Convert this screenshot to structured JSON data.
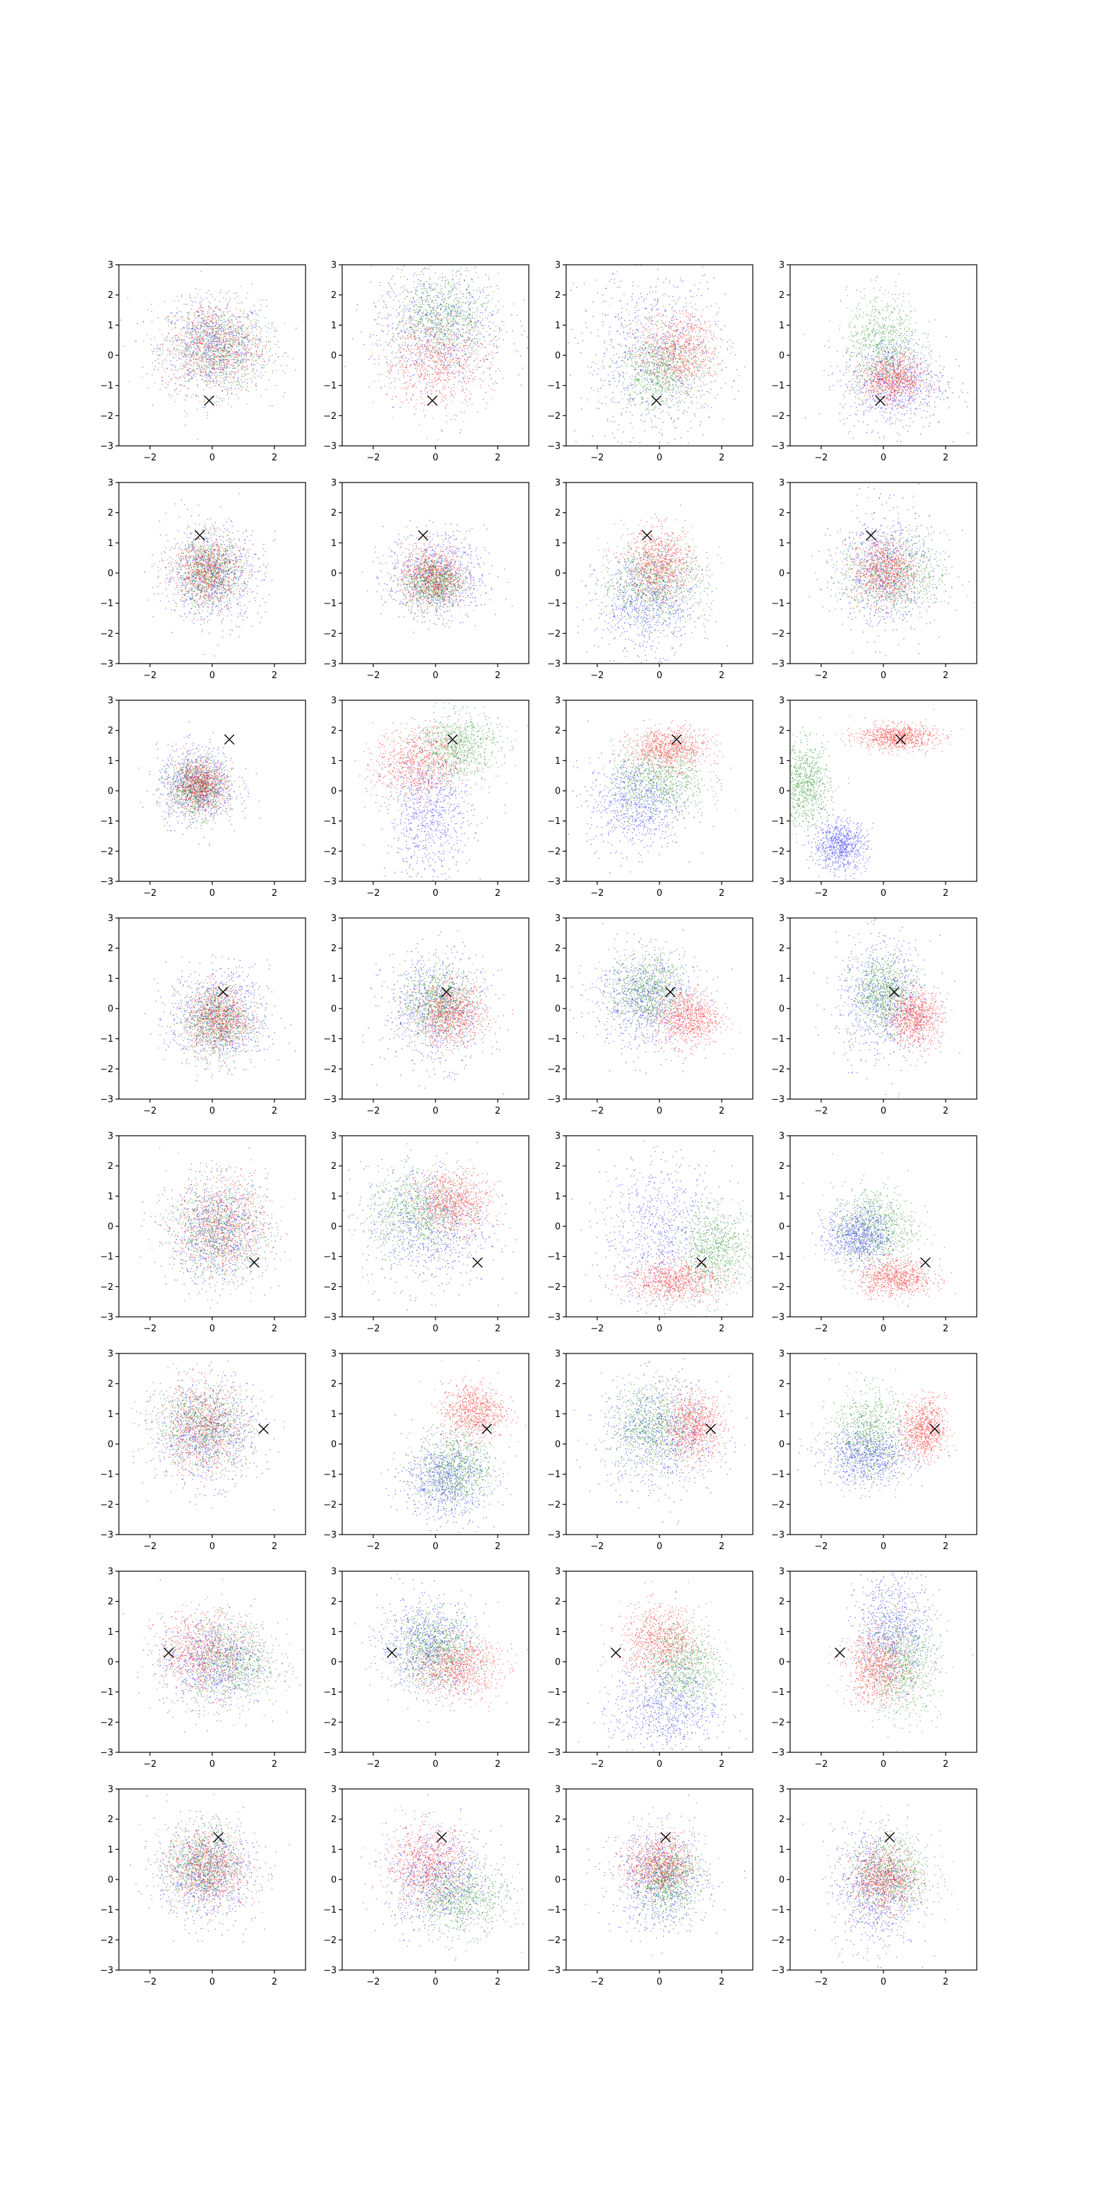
{
  "chart_data": {
    "type": "scatter",
    "layout": {
      "rows": 8,
      "cols": 4
    },
    "xlim": [
      -3,
      3
    ],
    "ylim": [
      -3,
      3
    ],
    "xticks": [
      -2,
      0,
      2
    ],
    "yticks": [
      -3,
      -2,
      -1,
      0,
      1,
      2,
      3
    ],
    "xtick_labels": [
      "−2",
      "0",
      "2"
    ],
    "ytick_labels": [
      "−3",
      "−2",
      "−1",
      "0",
      "1",
      "2",
      "3"
    ],
    "grid": false,
    "legend": "none",
    "series_colors": {
      "blue": "#0000ff",
      "green": "#008000",
      "red": "#ff0000"
    },
    "marker": {
      "symbol": "x",
      "color": "#000000"
    },
    "markers_per_row": [
      {
        "x": -0.1,
        "y": -1.5
      },
      {
        "x": -0.4,
        "y": 1.25
      },
      {
        "x": 0.55,
        "y": 1.7
      },
      {
        "x": 0.35,
        "y": 0.55
      },
      {
        "x": 1.35,
        "y": -1.2
      },
      {
        "x": 1.65,
        "y": 0.5
      },
      {
        "x": -1.4,
        "y": 0.3
      },
      {
        "x": 0.2,
        "y": 1.4
      }
    ],
    "panels": [
      [
        {
          "blue": {
            "cx": 0,
            "cy": 0.3,
            "sx": 1.0,
            "sy": 0.9
          },
          "green": {
            "cx": 0.2,
            "cy": 0.2,
            "sx": 0.95,
            "sy": 0.85
          },
          "red": {
            "cx": 0,
            "cy": 0.3,
            "sx": 0.95,
            "sy": 0.9
          }
        },
        {
          "blue": {
            "cx": 0.1,
            "cy": 0.9,
            "sx": 1.3,
            "sy": 1.3
          },
          "green": {
            "cx": 0.2,
            "cy": 1.3,
            "sx": 0.9,
            "sy": 0.8
          },
          "red": {
            "cx": 0,
            "cy": -0.2,
            "sx": 1.0,
            "sy": 0.9
          }
        },
        {
          "blue": {
            "cx": -0.2,
            "cy": 0,
            "sx": 1.4,
            "sy": 1.7
          },
          "green": {
            "cx": 0,
            "cy": -0.5,
            "sx": 0.8,
            "sy": 0.8
          },
          "red": {
            "cx": 0.6,
            "cy": 0.2,
            "sx": 0.75,
            "sy": 0.75
          }
        },
        {
          "blue": {
            "cx": 0.3,
            "cy": -0.9,
            "sx": 1.0,
            "sy": 0.9
          },
          "green": {
            "cx": 0,
            "cy": 0.4,
            "sx": 0.7,
            "sy": 1.0
          },
          "red": {
            "cx": 0.3,
            "cy": -0.8,
            "sx": 0.6,
            "sy": 0.45
          }
        }
      ],
      [
        {
          "blue": {
            "cx": 0,
            "cy": 0,
            "sx": 0.95,
            "sy": 0.95
          },
          "green": {
            "cx": -0.1,
            "cy": 0,
            "sx": 0.6,
            "sy": 0.65
          },
          "red": {
            "cx": -0.2,
            "cy": 0.1,
            "sx": 0.65,
            "sy": 0.7
          }
        },
        {
          "blue": {
            "cx": 0,
            "cy": -0.1,
            "sx": 0.95,
            "sy": 0.85
          },
          "green": {
            "cx": -0.1,
            "cy": -0.3,
            "sx": 0.55,
            "sy": 0.5
          },
          "red": {
            "cx": -0.1,
            "cy": -0.1,
            "sx": 0.6,
            "sy": 0.6
          }
        },
        {
          "blue": {
            "cx": -0.4,
            "cy": -1.0,
            "sx": 0.95,
            "sy": 0.95
          },
          "green": {
            "cx": -0.2,
            "cy": -0.3,
            "sx": 1.0,
            "sy": 0.8
          },
          "red": {
            "cx": 0,
            "cy": 0.3,
            "sx": 0.65,
            "sy": 0.7
          }
        },
        {
          "blue": {
            "cx": 0,
            "cy": 0.2,
            "sx": 0.9,
            "sy": 1.2
          },
          "green": {
            "cx": 0.3,
            "cy": -0.1,
            "sx": 1.0,
            "sy": 0.75
          },
          "red": {
            "cx": 0,
            "cy": 0.1,
            "sx": 0.6,
            "sy": 0.65
          }
        }
      ],
      [
        {
          "blue": {
            "cx": -0.5,
            "cy": 0.2,
            "sx": 0.75,
            "sy": 0.75
          },
          "green": {
            "cx": -0.5,
            "cy": 0.1,
            "sx": 0.55,
            "sy": 0.55
          },
          "red": {
            "cx": -0.4,
            "cy": 0.2,
            "sx": 0.5,
            "sy": 0.5
          }
        },
        {
          "blue": {
            "cx": -0.2,
            "cy": -0.8,
            "sx": 0.8,
            "sy": 1.2
          },
          "green": {
            "cx": 0.7,
            "cy": 1.5,
            "sx": 0.8,
            "sy": 0.65
          },
          "red": {
            "cx": -0.6,
            "cy": 0.9,
            "sx": 0.8,
            "sy": 0.7
          }
        },
        {
          "blue": {
            "cx": -0.8,
            "cy": -0.4,
            "sx": 0.9,
            "sy": 0.9
          },
          "green": {
            "cx": 0,
            "cy": 0.4,
            "sx": 0.9,
            "sy": 0.7
          },
          "red": {
            "cx": 0.3,
            "cy": 1.4,
            "sx": 0.75,
            "sy": 0.4
          }
        },
        {
          "blue": {
            "cx": -1.4,
            "cy": -1.8,
            "sx": 0.5,
            "sy": 0.5
          },
          "green": {
            "cx": -2.5,
            "cy": 0.2,
            "sx": 0.45,
            "sy": 0.8
          },
          "red": {
            "cx": 0.4,
            "cy": 1.8,
            "sx": 0.75,
            "sy": 0.25
          }
        }
      ],
      [
        {
          "blue": {
            "cx": 0.2,
            "cy": -0.3,
            "sx": 0.95,
            "sy": 0.95
          },
          "green": {
            "cx": 0.1,
            "cy": -0.4,
            "sx": 0.65,
            "sy": 0.7
          },
          "red": {
            "cx": 0.2,
            "cy": -0.3,
            "sx": 0.6,
            "sy": 0.65
          }
        },
        {
          "blue": {
            "cx": 0,
            "cy": 0,
            "sx": 1.0,
            "sy": 1.1
          },
          "green": {
            "cx": 0.1,
            "cy": 0.2,
            "sx": 0.7,
            "sy": 0.7
          },
          "red": {
            "cx": 0.5,
            "cy": -0.2,
            "sx": 0.65,
            "sy": 0.6
          }
        },
        {
          "blue": {
            "cx": -0.5,
            "cy": 0.3,
            "sx": 1.0,
            "sy": 1.0
          },
          "green": {
            "cx": -0.4,
            "cy": 0.6,
            "sx": 0.7,
            "sy": 0.7
          },
          "red": {
            "cx": 0.9,
            "cy": -0.3,
            "sx": 0.6,
            "sy": 0.55
          }
        },
        {
          "blue": {
            "cx": 0,
            "cy": 0.3,
            "sx": 0.9,
            "sy": 1.2
          },
          "green": {
            "cx": 0,
            "cy": 0.5,
            "sx": 0.6,
            "sy": 0.7
          },
          "red": {
            "cx": 1.0,
            "cy": -0.3,
            "sx": 0.5,
            "sy": 0.55
          }
        }
      ],
      [
        {
          "blue": {
            "cx": 0.2,
            "cy": -0.2,
            "sx": 0.95,
            "sy": 1.0
          },
          "green": {
            "cx": 0.1,
            "cy": -0.1,
            "sx": 0.9,
            "sy": 1.0
          },
          "red": {
            "cx": 0.3,
            "cy": 0,
            "sx": 0.85,
            "sy": 0.95
          }
        },
        {
          "blue": {
            "cx": -0.3,
            "cy": 0,
            "sx": 1.2,
            "sy": 1.2
          },
          "green": {
            "cx": -0.6,
            "cy": 0.5,
            "sx": 0.9,
            "sy": 0.8
          },
          "red": {
            "cx": 0.6,
            "cy": 0.8,
            "sx": 0.7,
            "sy": 0.6
          }
        },
        {
          "blue": {
            "cx": 0,
            "cy": -0.2,
            "sx": 1.1,
            "sy": 1.5
          },
          "green": {
            "cx": 1.8,
            "cy": -0.8,
            "sx": 0.7,
            "sy": 0.8
          },
          "red": {
            "cx": 0.4,
            "cy": -1.8,
            "sx": 0.9,
            "sy": 0.4
          }
        },
        {
          "blue": {
            "cx": -0.8,
            "cy": -0.3,
            "sx": 0.6,
            "sy": 0.55
          },
          "green": {
            "cx": -0.3,
            "cy": 0,
            "sx": 0.8,
            "sy": 0.8
          },
          "red": {
            "cx": 0.4,
            "cy": -1.7,
            "sx": 0.7,
            "sy": 0.35
          }
        }
      ],
      [
        {
          "blue": {
            "cx": -0.2,
            "cy": 0.4,
            "sx": 1.0,
            "sy": 1.0
          },
          "green": {
            "cx": -0.3,
            "cy": 0.6,
            "sx": 0.9,
            "sy": 0.8
          },
          "red": {
            "cx": -0.3,
            "cy": 0.5,
            "sx": 0.85,
            "sy": 0.9
          }
        },
        {
          "blue": {
            "cx": 0.3,
            "cy": -1.2,
            "sx": 0.8,
            "sy": 0.8
          },
          "green": {
            "cx": 0.6,
            "cy": -0.8,
            "sx": 0.7,
            "sy": 0.75
          },
          "red": {
            "cx": 1.2,
            "cy": 1.1,
            "sx": 0.6,
            "sy": 0.55
          }
        },
        {
          "blue": {
            "cx": 0,
            "cy": 0.3,
            "sx": 1.1,
            "sy": 1.1
          },
          "green": {
            "cx": -0.2,
            "cy": 0.6,
            "sx": 0.8,
            "sy": 0.8
          },
          "red": {
            "cx": 1.1,
            "cy": 0.6,
            "sx": 0.55,
            "sy": 0.65
          }
        },
        {
          "blue": {
            "cx": -0.5,
            "cy": -0.4,
            "sx": 0.85,
            "sy": 0.55
          },
          "green": {
            "cx": -0.5,
            "cy": 0.4,
            "sx": 0.7,
            "sy": 0.9
          },
          "red": {
            "cx": 1.3,
            "cy": 0.5,
            "sx": 0.4,
            "sy": 0.6
          }
        }
      ],
      [
        {
          "blue": {
            "cx": 0,
            "cy": 0,
            "sx": 1.0,
            "sy": 0.9
          },
          "green": {
            "cx": 0.6,
            "cy": 0,
            "sx": 0.9,
            "sy": 0.8
          },
          "red": {
            "cx": -0.3,
            "cy": 0.3,
            "sx": 0.9,
            "sy": 0.8
          }
        },
        {
          "blue": {
            "cx": -0.3,
            "cy": 0.6,
            "sx": 0.9,
            "sy": 0.9
          },
          "green": {
            "cx": 0,
            "cy": 0.4,
            "sx": 0.8,
            "sy": 0.7
          },
          "red": {
            "cx": 0.7,
            "cy": -0.2,
            "sx": 0.8,
            "sy": 0.6
          }
        },
        {
          "blue": {
            "cx": 0.2,
            "cy": -1.5,
            "sx": 1.0,
            "sy": 0.9
          },
          "green": {
            "cx": 0.7,
            "cy": -0.1,
            "sx": 0.7,
            "sy": 0.9
          },
          "red": {
            "cx": 0,
            "cy": 0.7,
            "sx": 0.75,
            "sy": 0.7
          }
        },
        {
          "blue": {
            "cx": 0.3,
            "cy": 1.1,
            "sx": 0.7,
            "sy": 1.1
          },
          "green": {
            "cx": 0.6,
            "cy": -0.1,
            "sx": 0.7,
            "sy": 1.0
          },
          "red": {
            "cx": -0.2,
            "cy": -0.2,
            "sx": 0.6,
            "sy": 0.7
          }
        }
      ],
      [
        {
          "blue": {
            "cx": -0.2,
            "cy": 0.2,
            "sx": 0.95,
            "sy": 0.95
          },
          "green": {
            "cx": -0.3,
            "cy": 0.5,
            "sx": 0.7,
            "sy": 0.75
          },
          "red": {
            "cx": -0.2,
            "cy": 0.4,
            "sx": 0.75,
            "sy": 0.8
          }
        },
        {
          "blue": {
            "cx": 0.1,
            "cy": 0,
            "sx": 1.0,
            "sy": 1.0
          },
          "green": {
            "cx": 0.8,
            "cy": -0.6,
            "sx": 0.9,
            "sy": 0.7
          },
          "red": {
            "cx": -0.3,
            "cy": 0.5,
            "sx": 0.8,
            "sy": 0.75
          }
        },
        {
          "blue": {
            "cx": 0,
            "cy": 0,
            "sx": 0.9,
            "sy": 1.0
          },
          "green": {
            "cx": 0.2,
            "cy": 0,
            "sx": 0.6,
            "sy": 0.7
          },
          "red": {
            "cx": 0,
            "cy": 0.5,
            "sx": 0.65,
            "sy": 0.6
          }
        },
        {
          "blue": {
            "cx": -0.3,
            "cy": -0.3,
            "sx": 0.8,
            "sy": 1.2
          },
          "green": {
            "cx": 0.2,
            "cy": 0.2,
            "sx": 0.8,
            "sy": 0.8
          },
          "red": {
            "cx": 0,
            "cy": 0,
            "sx": 0.6,
            "sy": 0.6
          }
        }
      ]
    ]
  }
}
